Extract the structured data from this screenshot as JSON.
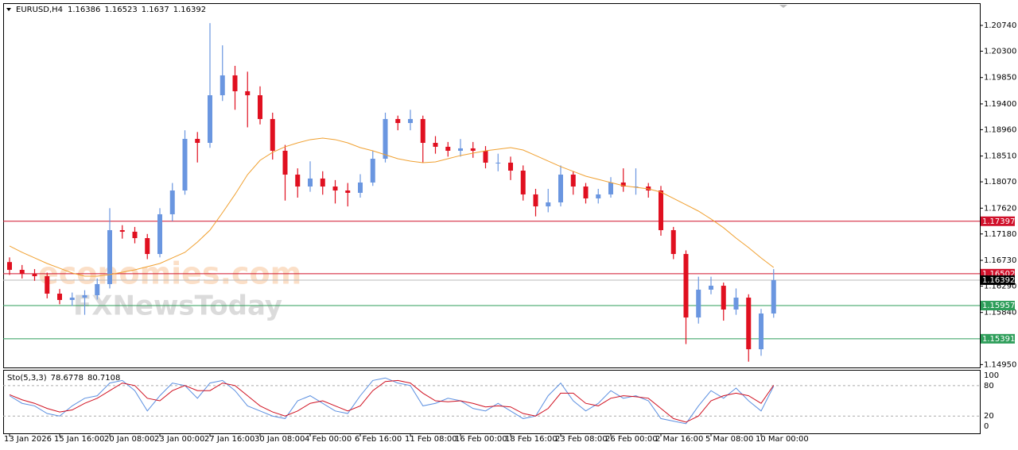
{
  "watermark": [
    "economies.com",
    "FXNewsToday"
  ],
  "chart_data": [
    {
      "type": "candlestick",
      "title": "EURUSD,H4",
      "header_values": [
        1.16386,
        1.16523,
        1.1637,
        1.16392
      ],
      "up_color": "#6a96e0",
      "down_color": "#e01020",
      "overlay_color": "#f0a030",
      "ylim": [
        1.14901,
        1.21106
      ],
      "yticks": [
        {
          "value": 1.2074,
          "label": "1.20740"
        },
        {
          "value": 1.203,
          "label": "1.20300"
        },
        {
          "value": 1.1985,
          "label": "1.19850"
        },
        {
          "value": 1.194,
          "label": "1.19400"
        },
        {
          "value": 1.1896,
          "label": "1.18960"
        },
        {
          "value": 1.1851,
          "label": "1.18510"
        },
        {
          "value": 1.1807,
          "label": "1.18070"
        },
        {
          "value": 1.1762,
          "label": "1.17620"
        },
        {
          "value": 1.1718,
          "label": "1.17180"
        },
        {
          "value": 1.1673,
          "label": "1.16730"
        },
        {
          "value": 1.1629,
          "label": "1.16290"
        },
        {
          "value": 1.1584,
          "label": "1.15840"
        },
        {
          "value": 1.1495,
          "label": "1.14950"
        }
      ],
      "hlines": [
        {
          "value": 1.17397,
          "color": "#d0102a"
        },
        {
          "value": 1.16502,
          "color": "#d0102a"
        },
        {
          "value": 1.15957,
          "color": "#2e9e5a"
        },
        {
          "value": 1.15391,
          "color": "#2e9e5a"
        },
        {
          "value": 1.16392,
          "color": "#000000"
        }
      ],
      "categories": [
        "13 Jan 2026",
        null,
        null,
        null,
        "15 Jan 16:00",
        null,
        null,
        null,
        "20 Jan 08:00",
        null,
        null,
        null,
        "23 Jan 00:00",
        null,
        null,
        null,
        "27 Jan 16:00",
        null,
        null,
        null,
        "30 Jan 08:00",
        null,
        null,
        null,
        "4 Feb 00:00",
        null,
        null,
        null,
        "6 Feb 16:00",
        null,
        null,
        null,
        "11 Feb 08:00",
        null,
        null,
        null,
        "16 Feb 00:00",
        null,
        null,
        null,
        "18 Feb 16:00",
        null,
        null,
        null,
        "23 Feb 08:00",
        null,
        null,
        null,
        "26 Feb 00:00",
        null,
        null,
        null,
        "2 Mar 16:00",
        null,
        null,
        null,
        "5 Mar 08:00",
        null,
        null,
        null,
        "10 Mar 00:00",
        null
      ],
      "open": [
        1.167,
        1.16567,
        1.165,
        1.16459,
        1.16161,
        1.16053,
        1.16093,
        1.16134,
        1.16324,
        1.17245,
        1.17218,
        1.17109,
        1.16838,
        1.17516,
        1.17922,
        1.18803,
        1.18735,
        1.19548,
        1.19887,
        1.19616,
        1.19548,
        1.19142,
        1.186,
        1.18193,
        1.1799,
        1.18126,
        1.1799,
        1.17922,
        1.17882,
        1.18058,
        1.18464,
        1.19142,
        1.19074,
        1.19142,
        1.18735,
        1.18668,
        1.186,
        1.18641,
        1.186,
        1.18397,
        1.18397,
        1.18261,
        1.17855,
        1.17651,
        1.17719,
        1.18193,
        1.1799,
        1.17787,
        1.17855,
        1.18058,
        1.1799,
        1.1799,
        1.17922,
        1.17245,
        1.16838,
        1.15754,
        1.16229,
        1.16296,
        1.1589,
        1.16093,
        1.15212,
        1.15822
      ],
      "high": [
        1.1678,
        1.1665,
        1.1658,
        1.1652,
        1.1624,
        1.1618,
        1.1622,
        1.1642,
        1.1762,
        1.1733,
        1.173,
        1.1718,
        1.1762,
        1.1805,
        1.1895,
        1.1892,
        1.2078,
        1.204,
        1.2005,
        1.1995,
        1.197,
        1.1925,
        1.187,
        1.183,
        1.1842,
        1.1825,
        1.181,
        1.1805,
        1.182,
        1.186,
        1.1925,
        1.192,
        1.193,
        1.192,
        1.1885,
        1.1875,
        1.188,
        1.1875,
        1.1868,
        1.1855,
        1.185,
        1.1835,
        1.1795,
        1.1795,
        1.1835,
        1.1825,
        1.1805,
        1.1795,
        1.1815,
        1.183,
        1.183,
        1.1805,
        1.18,
        1.173,
        1.169,
        1.1645,
        1.1645,
        1.1635,
        1.1625,
        1.1615,
        1.159,
        1.1658
      ],
      "low": [
        1.1648,
        1.1642,
        1.1638,
        1.1608,
        1.1598,
        1.1595,
        1.158,
        1.1606,
        1.1625,
        1.171,
        1.1702,
        1.1675,
        1.1678,
        1.174,
        1.1785,
        1.184,
        1.1865,
        1.1945,
        1.193,
        1.19,
        1.1905,
        1.1845,
        1.1775,
        1.178,
        1.179,
        1.1785,
        1.177,
        1.1765,
        1.178,
        1.18,
        1.184,
        1.1895,
        1.1895,
        1.184,
        1.1855,
        1.185,
        1.185,
        1.1848,
        1.183,
        1.1825,
        1.181,
        1.1775,
        1.1748,
        1.1755,
        1.1765,
        1.1785,
        1.177,
        1.177,
        1.178,
        1.179,
        1.1785,
        1.178,
        1.1715,
        1.1675,
        1.153,
        1.1565,
        1.1615,
        1.157,
        1.158,
        1.15,
        1.151,
        1.1575
      ],
      "close": [
        1.16567,
        1.165,
        1.16459,
        1.16161,
        1.16053,
        1.16093,
        1.16134,
        1.16324,
        1.17245,
        1.17218,
        1.17109,
        1.16838,
        1.17516,
        1.17922,
        1.18803,
        1.18735,
        1.19548,
        1.19887,
        1.19616,
        1.19548,
        1.19142,
        1.186,
        1.18193,
        1.1799,
        1.18126,
        1.1799,
        1.17922,
        1.17882,
        1.18058,
        1.18464,
        1.19142,
        1.19074,
        1.19142,
        1.18735,
        1.18668,
        1.186,
        1.18641,
        1.186,
        1.18397,
        1.18397,
        1.18261,
        1.17855,
        1.17651,
        1.17719,
        1.18193,
        1.1799,
        1.17787,
        1.17855,
        1.18058,
        1.1799,
        1.1799,
        1.17922,
        1.17245,
        1.16838,
        1.15754,
        1.16229,
        1.16296,
        1.1589,
        1.16093,
        1.15212,
        1.15822,
        1.16392
      ],
      "overlay": [
        1.16974,
        1.16866,
        1.16771,
        1.16676,
        1.16595,
        1.16513,
        1.16459,
        1.16459,
        1.16486,
        1.16527,
        1.16567,
        1.16622,
        1.16676,
        1.16771,
        1.16866,
        1.17042,
        1.17245,
        1.17543,
        1.17855,
        1.18193,
        1.18437,
        1.18573,
        1.18668,
        1.18735,
        1.1879,
        1.18817,
        1.1879,
        1.18735,
        1.18654,
        1.186,
        1.18532,
        1.18464,
        1.18424,
        1.18397,
        1.1841,
        1.18464,
        1.18519,
        1.18559,
        1.186,
        1.18627,
        1.18654,
        1.18613,
        1.18519,
        1.18424,
        1.18329,
        1.18248,
        1.18166,
        1.18112,
        1.18058,
        1.18003,
        1.17976,
        1.17949,
        1.17895,
        1.17787,
        1.17679,
        1.1757,
        1.17435,
        1.17286,
        1.17109,
        1.16947,
        1.16771,
        1.16608
      ]
    },
    {
      "type": "line",
      "title": "Sto(5,3,3)",
      "ylim": [
        -15.6,
        109.4
      ],
      "yticks": [
        100,
        80,
        20,
        0
      ],
      "levels": [
        80,
        20
      ],
      "series": [
        {
          "color": "#5b8fe0",
          "values": [
            60,
            45,
            40,
            25,
            20,
            40,
            55,
            60,
            85,
            90,
            70,
            30,
            60,
            85,
            80,
            55,
            85,
            90,
            70,
            40,
            30,
            20,
            15,
            50,
            60,
            45,
            30,
            25,
            60,
            90,
            95,
            85,
            80,
            40,
            45,
            55,
            50,
            35,
            30,
            45,
            30,
            15,
            20,
            60,
            85,
            50,
            30,
            45,
            70,
            55,
            60,
            50,
            15,
            10,
            5,
            40,
            70,
            55,
            75,
            50,
            30,
            78.6778
          ]
        },
        {
          "color": "#d01020",
          "values": [
            62,
            52,
            45,
            35,
            28,
            32,
            45,
            55,
            70,
            85,
            80,
            55,
            50,
            70,
            80,
            70,
            70,
            85,
            80,
            60,
            40,
            28,
            20,
            30,
            45,
            50,
            40,
            30,
            40,
            70,
            88,
            90,
            85,
            65,
            50,
            48,
            50,
            45,
            38,
            40,
            38,
            25,
            20,
            35,
            65,
            65,
            45,
            40,
            55,
            60,
            58,
            55,
            35,
            15,
            8,
            20,
            50,
            60,
            65,
            60,
            45,
            80.7108
          ]
        }
      ]
    }
  ]
}
